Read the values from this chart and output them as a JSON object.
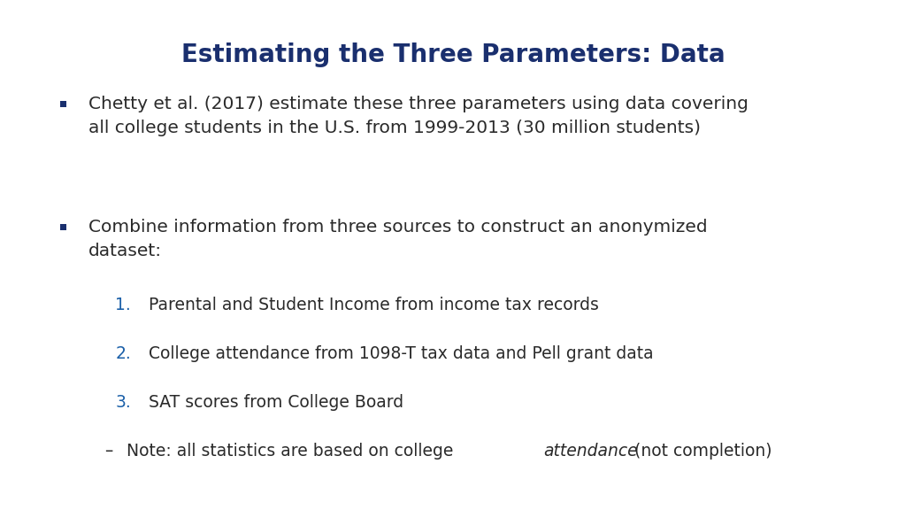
{
  "title": "Estimating the Three Parameters: Data",
  "title_color": "#1a2f6e",
  "title_fontsize": 20,
  "background_color": "#ffffff",
  "bullet_color": "#1a2f6e",
  "text_color": "#2a2a2a",
  "number_color": "#1a5fa8",
  "bullet1_line1": "Chetty et al. (2017) estimate these three parameters using data covering",
  "bullet1_line2": "all college students in the U.S. from 1999-2013 (30 million students)",
  "bullet2_line1": "Combine information from three sources to construct an anonymized",
  "bullet2_line2": "dataset:",
  "numbered_items": [
    "Parental and Student Income from income tax records",
    "College attendance from 1098-T tax data and Pell grant data",
    "SAT scores from College Board"
  ],
  "note_dash": "–",
  "note_text_pre": "Note: all statistics are based on college ",
  "note_text_italic": "attendance",
  "note_text_post": " (not completion)",
  "main_fontsize": 14.5,
  "sub_fontsize": 13.5
}
